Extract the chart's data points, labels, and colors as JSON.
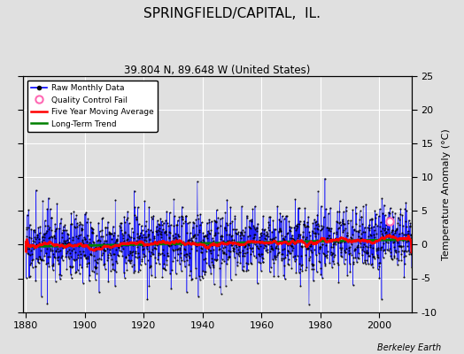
{
  "title": "SPRINGFIELD/CAPITAL,  IL.",
  "subtitle": "39.804 N, 89.648 W (United States)",
  "ylabel": "Temperature Anomaly (°C)",
  "watermark": "Berkeley Earth",
  "start_year": 1880,
  "end_year": 2011,
  "ylim": [
    -10,
    25
  ],
  "yticks": [
    -10,
    -5,
    0,
    5,
    10,
    15,
    20,
    25
  ],
  "xticks": [
    1880,
    1900,
    1920,
    1940,
    1960,
    1980,
    2000
  ],
  "bg_color": "#e0e0e0",
  "grid_color": "white",
  "line_color": "blue",
  "moving_avg_color": "red",
  "trend_color": "green",
  "qc_color": "#ff69b4",
  "seed": 17
}
